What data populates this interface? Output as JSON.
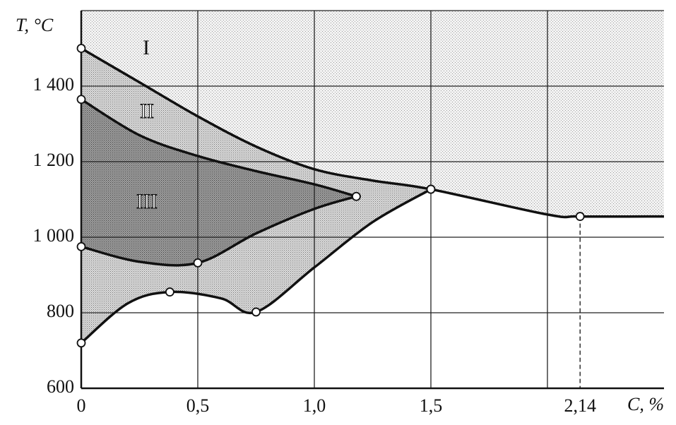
{
  "chart_data": {
    "type": "line",
    "x_label": "C, %",
    "y_label": "T, °C",
    "xlim": [
      0,
      2.5
    ],
    "ylim": [
      600,
      1600
    ],
    "xticks": [
      0,
      {
        "value": 0.5,
        "label": "0,5"
      },
      {
        "value": 1.0,
        "label": "1,0"
      },
      {
        "value": 1.5,
        "label": "1,5"
      },
      {
        "value": 2.14,
        "label": "2,14"
      }
    ],
    "xgrid": [
      0.5,
      1.0,
      1.5,
      2.0
    ],
    "yticks": [
      600,
      800,
      {
        "value": 1000,
        "label": "1 000"
      },
      {
        "value": 1200,
        "label": "1 200"
      },
      {
        "value": 1400,
        "label": "1 400"
      }
    ],
    "grid": true,
    "color": "#111111",
    "region_labels": [
      "I",
      "II",
      "III"
    ],
    "series": [
      {
        "x": [
          0,
          0.25,
          0.5,
          0.75,
          1.0,
          1.25,
          1.5,
          2.0,
          2.14,
          2.5
        ],
        "values": [
          1500,
          1410,
          1320,
          1240,
          1180,
          1150,
          1127,
          1060,
          1055,
          1055
        ],
        "marked": [
          true,
          false,
          false,
          false,
          false,
          false,
          true,
          false,
          true,
          false
        ]
      },
      {
        "x": [
          0,
          0.25,
          0.5,
          0.75,
          1.0,
          1.18
        ],
        "values": [
          1365,
          1270,
          1215,
          1175,
          1140,
          1108
        ],
        "marked": [
          true,
          false,
          false,
          false,
          false,
          true
        ]
      },
      {
        "x": [
          0,
          0.25,
          0.5,
          0.75,
          1.0,
          1.18
        ],
        "values": [
          975,
          935,
          932,
          1010,
          1075,
          1108
        ],
        "marked": [
          true,
          false,
          true,
          false,
          false,
          true
        ]
      },
      {
        "x": [
          0,
          0.2,
          0.38,
          0.6,
          0.75,
          1.0,
          1.25,
          1.5
        ],
        "values": [
          720,
          825,
          855,
          838,
          802,
          920,
          1040,
          1127
        ],
        "marked": [
          true,
          false,
          true,
          false,
          true,
          false,
          false,
          true
        ]
      }
    ]
  }
}
